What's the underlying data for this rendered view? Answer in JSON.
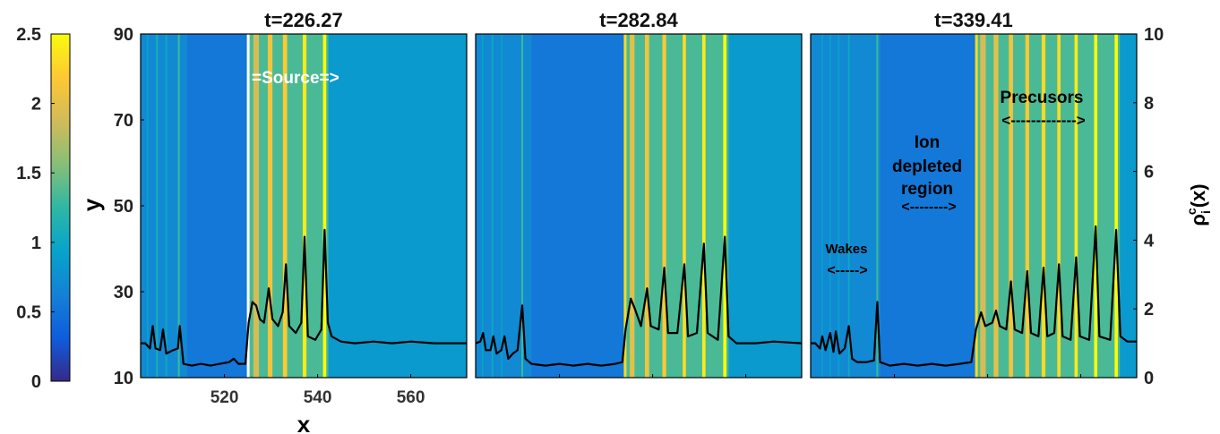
{
  "chart_data": {
    "type": "heatmap",
    "colorbar": {
      "colormap": "parula",
      "range": [
        0,
        2.5
      ],
      "ticks": [
        "0",
        "0.5",
        "1",
        "1.5",
        "2",
        "2.5"
      ],
      "tick_values": [
        0,
        0.5,
        1,
        1.5,
        2,
        2.5
      ]
    },
    "xlabel": "x",
    "ylabel": "y",
    "y2label": "ρ",
    "y2label_sup": "c",
    "y2label_sub": "i",
    "y2label_tail": "(x)",
    "ylim": [
      10,
      90
    ],
    "y2lim": [
      0,
      10
    ],
    "y_ticks": [
      "10",
      "30",
      "50",
      "70",
      "90"
    ],
    "y_tick_values": [
      10,
      30,
      50,
      70,
      90
    ],
    "y2_ticks": [
      "0",
      "2",
      "4",
      "6",
      "8",
      "10"
    ],
    "y2_tick_values": [
      0,
      2,
      4,
      6,
      8,
      10
    ],
    "x_ticks": [
      "520",
      "540",
      "560"
    ],
    "x_tick_values": [
      520,
      540,
      560
    ],
    "panels": [
      {
        "title": "t=226.27",
        "xlim": [
          502,
          572
        ],
        "background": 0.85,
        "front_x": 525,
        "depleted": [
          512,
          525
        ],
        "stripes": [
          {
            "x": 503.5,
            "h": 0.9,
            "w": 0.3
          },
          {
            "x": 505.5,
            "h": 1.1,
            "w": 0.3
          },
          {
            "x": 507.5,
            "h": 1.0,
            "w": 0.3
          },
          {
            "x": 510.2,
            "h": 1.3,
            "w": 0.4
          },
          {
            "x": 526.8,
            "h": 1.9,
            "w": 1.2
          },
          {
            "x": 529.8,
            "h": 2.1,
            "w": 1.0
          },
          {
            "x": 533.0,
            "h": 2.2,
            "w": 0.9
          },
          {
            "x": 537.2,
            "h": 2.4,
            "w": 0.8
          },
          {
            "x": 541.5,
            "h": 2.5,
            "w": 0.7
          }
        ],
        "density": [
          [
            502,
            1.0
          ],
          [
            503,
            1.0
          ],
          [
            504,
            0.85
          ],
          [
            504.6,
            1.5
          ],
          [
            505.2,
            0.85
          ],
          [
            506.2,
            0.8
          ],
          [
            506.8,
            1.4
          ],
          [
            507.5,
            0.7
          ],
          [
            509,
            0.8
          ],
          [
            510,
            0.85
          ],
          [
            510.4,
            1.5
          ],
          [
            511.2,
            0.4
          ],
          [
            513,
            0.35
          ],
          [
            515,
            0.4
          ],
          [
            517,
            0.35
          ],
          [
            519,
            0.4
          ],
          [
            521,
            0.45
          ],
          [
            522,
            0.55
          ],
          [
            523,
            0.4
          ],
          [
            524.5,
            0.4
          ],
          [
            525.2,
            1.6
          ],
          [
            526,
            2.2
          ],
          [
            526.8,
            2.1
          ],
          [
            527.6,
            1.7
          ],
          [
            528.5,
            1.6
          ],
          [
            529.5,
            2.6
          ],
          [
            530.3,
            1.7
          ],
          [
            531.5,
            1.5
          ],
          [
            532.5,
            1.9
          ],
          [
            533.2,
            3.3
          ],
          [
            533.9,
            1.5
          ],
          [
            535.3,
            1.3
          ],
          [
            536.5,
            1.6
          ],
          [
            537.2,
            4.1
          ],
          [
            537.9,
            1.2
          ],
          [
            539.5,
            1.1
          ],
          [
            540.8,
            1.4
          ],
          [
            541.5,
            4.3
          ],
          [
            542.2,
            1.6
          ],
          [
            543,
            1.2
          ],
          [
            545,
            1.05
          ],
          [
            548,
            1.0
          ],
          [
            552,
            1.05
          ],
          [
            556,
            1.0
          ],
          [
            560,
            1.05
          ],
          [
            565,
            1.0
          ],
          [
            572,
            1.0
          ]
        ]
      },
      {
        "title": "t=282.84",
        "xlim": [
          502,
          572
        ],
        "background": 0.85,
        "front_x": 534,
        "depleted": [
          514,
          534
        ],
        "stripes": [
          {
            "x": 503.5,
            "h": 0.9,
            "w": 0.3
          },
          {
            "x": 505.6,
            "h": 1.0,
            "w": 0.3
          },
          {
            "x": 507.6,
            "h": 0.9,
            "w": 0.3
          },
          {
            "x": 512.0,
            "h": 1.3,
            "w": 0.4
          },
          {
            "x": 535.6,
            "h": 2.0,
            "w": 1.0
          },
          {
            "x": 538.8,
            "h": 2.1,
            "w": 0.9
          },
          {
            "x": 542.5,
            "h": 2.2,
            "w": 0.8
          },
          {
            "x": 546.8,
            "h": 2.3,
            "w": 0.7
          },
          {
            "x": 551.0,
            "h": 2.4,
            "w": 0.7
          },
          {
            "x": 555.5,
            "h": 2.5,
            "w": 0.7
          }
        ],
        "density": [
          [
            502,
            1.0
          ],
          [
            503,
            1.05
          ],
          [
            503.6,
            1.3
          ],
          [
            504.2,
            0.8
          ],
          [
            505.2,
            0.8
          ],
          [
            505.8,
            1.2
          ],
          [
            506.5,
            0.7
          ],
          [
            507.5,
            0.8
          ],
          [
            508.2,
            1.2
          ],
          [
            509,
            0.55
          ],
          [
            510,
            0.7
          ],
          [
            511,
            0.8
          ],
          [
            512.0,
            2.1
          ],
          [
            512.7,
            0.55
          ],
          [
            514,
            0.4
          ],
          [
            517,
            0.35
          ],
          [
            520,
            0.4
          ],
          [
            523,
            0.35
          ],
          [
            526,
            0.4
          ],
          [
            529,
            0.35
          ],
          [
            532,
            0.4
          ],
          [
            533.5,
            0.45
          ],
          [
            534.2,
            1.4
          ],
          [
            535.3,
            2.3
          ],
          [
            536.2,
            2.0
          ],
          [
            537.5,
            1.5
          ],
          [
            538.8,
            2.6
          ],
          [
            539.6,
            1.5
          ],
          [
            541.3,
            1.4
          ],
          [
            542.5,
            3.2
          ],
          [
            543.3,
            1.3
          ],
          [
            545.3,
            1.3
          ],
          [
            546.8,
            3.3
          ],
          [
            547.6,
            1.2
          ],
          [
            549.5,
            1.3
          ],
          [
            551.0,
            3.9
          ],
          [
            551.8,
            1.3
          ],
          [
            554,
            1.1
          ],
          [
            555.5,
            4.1
          ],
          [
            556.3,
            1.2
          ],
          [
            558,
            1.0
          ],
          [
            562,
            1.0
          ],
          [
            566,
            1.05
          ],
          [
            572,
            1.0
          ]
        ]
      },
      {
        "title": "t=339.41",
        "xlim": [
          502,
          572
        ],
        "background": 0.85,
        "front_x": 537.5,
        "depleted": [
          517,
          537.5
        ],
        "stripes": [
          {
            "x": 504.5,
            "h": 0.9,
            "w": 0.3
          },
          {
            "x": 506.2,
            "h": 0.9,
            "w": 0.3
          },
          {
            "x": 508.0,
            "h": 0.9,
            "w": 0.3
          },
          {
            "x": 510.2,
            "h": 1.0,
            "w": 0.3
          },
          {
            "x": 516.3,
            "h": 1.3,
            "w": 0.4
          },
          {
            "x": 539.0,
            "h": 1.9,
            "w": 1.2
          },
          {
            "x": 541.8,
            "h": 2.0,
            "w": 1.0
          },
          {
            "x": 545.0,
            "h": 2.1,
            "w": 0.9
          },
          {
            "x": 548.5,
            "h": 2.2,
            "w": 0.8
          },
          {
            "x": 552.0,
            "h": 2.3,
            "w": 0.8
          },
          {
            "x": 555.3,
            "h": 2.3,
            "w": 0.7
          },
          {
            "x": 559.0,
            "h": 2.4,
            "w": 0.7
          },
          {
            "x": 563.2,
            "h": 2.5,
            "w": 0.7
          },
          {
            "x": 567.6,
            "h": 2.5,
            "w": 0.7
          }
        ],
        "density": [
          [
            502,
            1.0
          ],
          [
            503,
            1.0
          ],
          [
            504,
            0.85
          ],
          [
            504.5,
            1.2
          ],
          [
            505.2,
            0.8
          ],
          [
            506.2,
            1.3
          ],
          [
            506.9,
            0.75
          ],
          [
            507.4,
            1.35
          ],
          [
            508.2,
            0.7
          ],
          [
            509.3,
            0.85
          ],
          [
            510.2,
            1.5
          ],
          [
            510.9,
            0.55
          ],
          [
            512,
            0.45
          ],
          [
            514,
            0.45
          ],
          [
            515.6,
            0.5
          ],
          [
            516.3,
            2.2
          ],
          [
            516.9,
            0.45
          ],
          [
            519,
            0.35
          ],
          [
            522,
            0.4
          ],
          [
            525,
            0.35
          ],
          [
            528,
            0.4
          ],
          [
            531,
            0.35
          ],
          [
            534,
            0.4
          ],
          [
            536.5,
            0.45
          ],
          [
            537.5,
            1.4
          ],
          [
            538.6,
            1.9
          ],
          [
            539.5,
            1.5
          ],
          [
            541,
            1.6
          ],
          [
            541.8,
            1.95
          ],
          [
            542.6,
            1.5
          ],
          [
            544,
            1.4
          ],
          [
            545.0,
            2.8
          ],
          [
            545.8,
            1.4
          ],
          [
            547.4,
            1.3
          ],
          [
            548.5,
            3.1
          ],
          [
            549.3,
            1.3
          ],
          [
            550.9,
            1.2
          ],
          [
            552.0,
            3.2
          ],
          [
            552.8,
            1.2
          ],
          [
            554.3,
            1.3
          ],
          [
            555.3,
            3.3
          ],
          [
            556.1,
            1.2
          ],
          [
            557.8,
            1.1
          ],
          [
            559.0,
            3.5
          ],
          [
            559.8,
            1.2
          ],
          [
            561.8,
            1.1
          ],
          [
            563.2,
            4.4
          ],
          [
            564.0,
            1.2
          ],
          [
            566.3,
            1.1
          ],
          [
            567.6,
            4.3
          ],
          [
            568.5,
            1.2
          ],
          [
            570,
            1.05
          ],
          [
            572,
            1.05
          ]
        ]
      }
    ],
    "annotations": {
      "source": "=Source=>",
      "precursors": "Precusors",
      "precursors_arrow": "<------------->",
      "ion_line1": "Ion",
      "ion_line2": "depleted",
      "ion_line3": "region",
      "ion_arrow": "<-------->",
      "wakes": "Wakes",
      "wakes_arrow": "<----->"
    }
  }
}
